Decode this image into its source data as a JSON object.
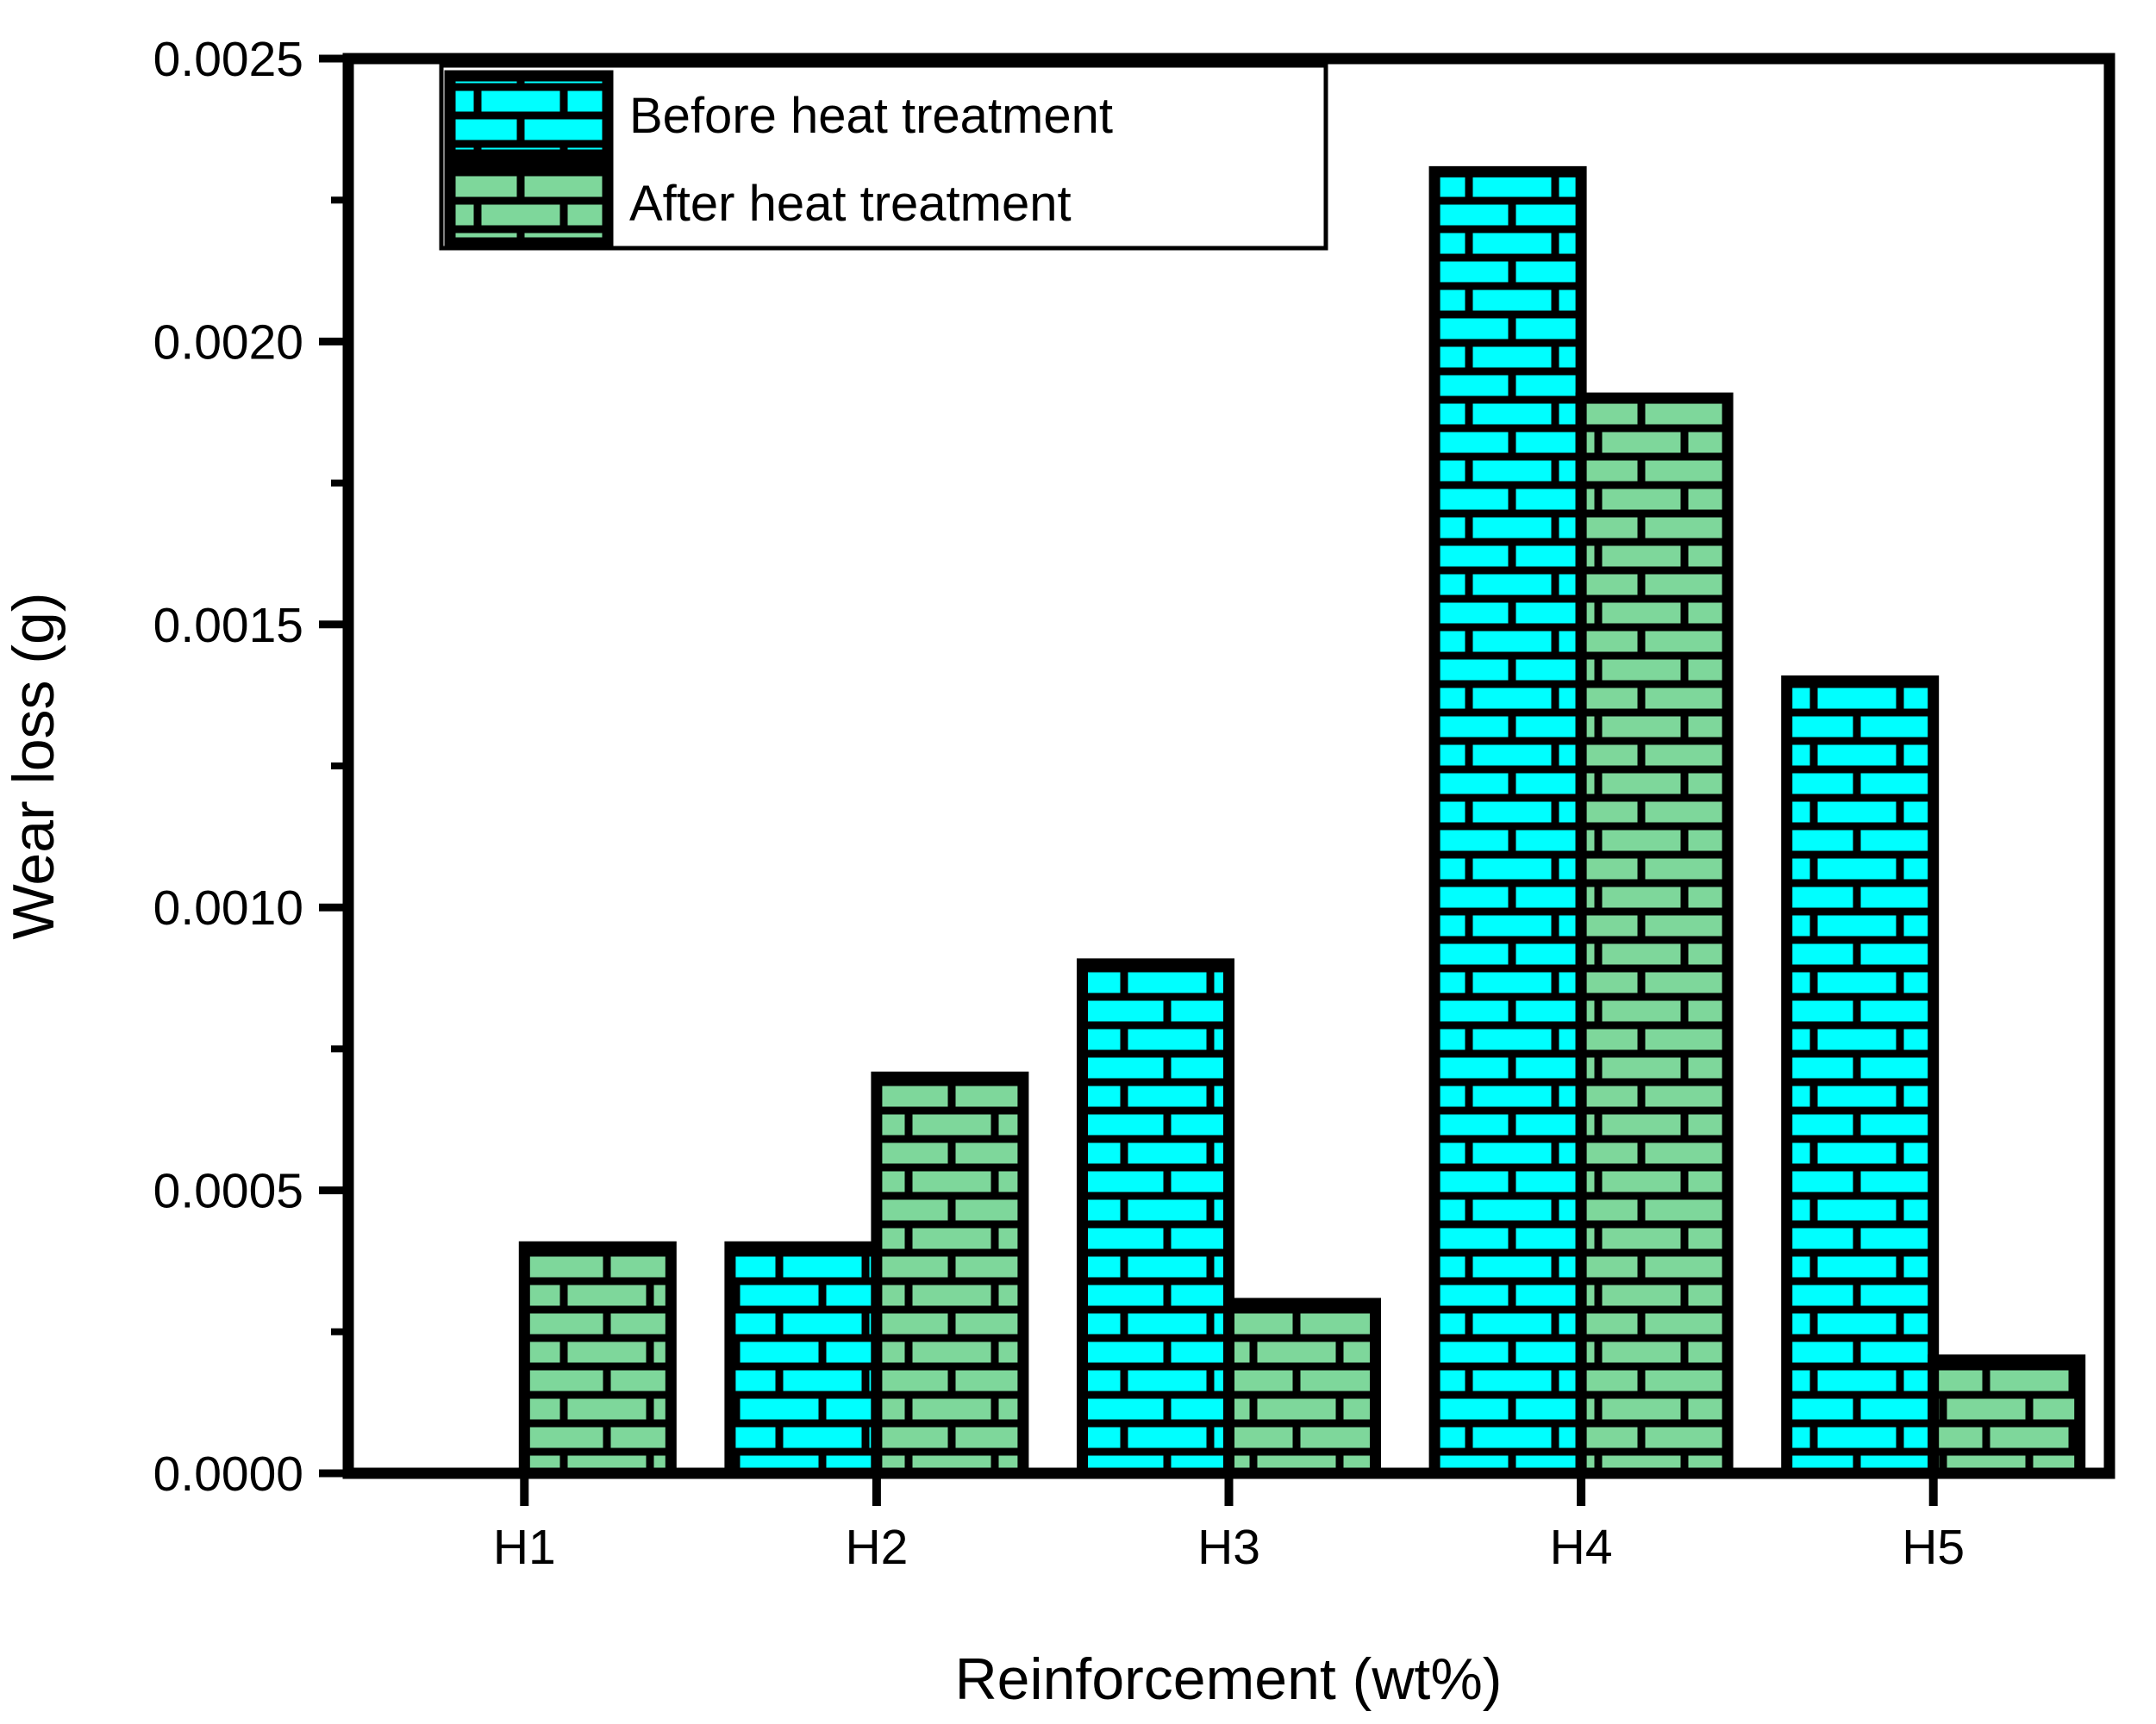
{
  "chart_data": {
    "type": "bar",
    "title": "",
    "categories": [
      "H1",
      "H2",
      "H3",
      "H4",
      "H5"
    ],
    "series": [
      {
        "name": "Before heat treatment",
        "color": "#00FFFF",
        "pattern": "brick",
        "values": [
          0,
          0.0004,
          0.0009,
          0.0023,
          0.0014
        ]
      },
      {
        "name": "After heat treatment",
        "color": "#7ED79B",
        "pattern": "brick",
        "values": [
          0.0004,
          0.0007,
          0.0003,
          0.0019,
          0.0002
        ]
      }
    ],
    "xlabel": "Reinforcement (wt%)",
    "ylabel": "Wear loss (g)",
    "ylim": [
      0,
      0.0025
    ],
    "ytick_step": 0.0005,
    "yminor_step": 0.00025,
    "ytick_labels": [
      "0.0000",
      "0.0005",
      "0.0010",
      "0.0015",
      "0.0020",
      "0.0025"
    ],
    "grid": false,
    "legend_position": "top-left",
    "outline_color": "#000000",
    "frame": true
  }
}
